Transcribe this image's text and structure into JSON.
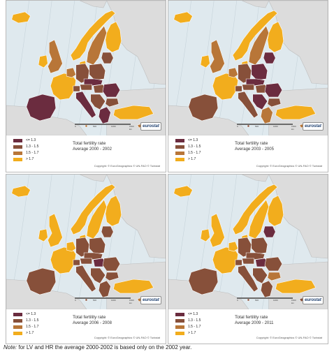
{
  "legend": [
    {
      "label": "<= 1.3",
      "color": "#6b2c3f"
    },
    {
      "label": "1.3 - 1.5",
      "color": "#87503a"
    },
    {
      "label": "1.5 - 1.7",
      "color": "#b87638"
    },
    {
      "label": "> 1.7",
      "color": "#f2ad1d"
    }
  ],
  "map_title": "Total fertility rate",
  "copyright": "Copyright: © EuroGeographics © UN-FAO © Turkstat",
  "logo_text": "eurostat",
  "scale": {
    "ticks": [
      "0",
      "500",
      "1000",
      "1500 km"
    ]
  },
  "panels": [
    {
      "period": "Average 2000 - 2002",
      "regions": {
        "iceland": "1.7+",
        "norway": "1.7+",
        "sweden": "1.5-1.7",
        "finland": "1.7+",
        "denmark": "1.7+",
        "ireland": "1.7+",
        "uk": "1.5-1.7",
        "france": "1.7+",
        "benelux": "1.5-1.7",
        "germany": "1.3-1.5",
        "poland": "1.3-1.5",
        "baltics": "1.3-1.5",
        "czsk": "<=1.3",
        "hu": "1.3-1.5",
        "at": "1.3-1.5",
        "ch": "1.3-1.5",
        "iberia": "<=1.3",
        "italy": "<=1.3",
        "balkans": "1.3-1.5",
        "romania": "<=1.3",
        "bulgaria": "1.3-1.5",
        "greece": "<=1.3",
        "turkey": "1.7+",
        "cyprus": "1.5-1.7",
        "malta": "1.5-1.7"
      }
    },
    {
      "period": "Average 2003 - 2005",
      "regions": {
        "iceland": "1.7+",
        "norway": "1.7+",
        "sweden": "1.5-1.7",
        "finland": "1.7+",
        "denmark": "1.7+",
        "ireland": "1.7+",
        "uk": "1.5-1.7",
        "france": "1.7+",
        "benelux": "1.5-1.7",
        "germany": "1.3-1.5",
        "poland": "<=1.3",
        "baltics": "<=1.3",
        "czsk": "<=1.3",
        "hu": "1.3-1.5",
        "at": "1.3-1.5",
        "ch": "1.3-1.5",
        "iberia": "1.3-1.5",
        "italy": "1.3-1.5",
        "balkans": "<=1.3",
        "romania": "<=1.3",
        "bulgaria": "1.3-1.5",
        "greece": "1.5-1.7",
        "turkey": "1.7+",
        "cyprus": "1.5-1.7",
        "malta": "1.3-1.5"
      }
    },
    {
      "period": "Average 2006 - 2008",
      "regions": {
        "iceland": "1.7+",
        "norway": "1.7+",
        "sweden": "1.7+",
        "finland": "1.7+",
        "denmark": "1.7+",
        "ireland": "1.7+",
        "uk": "1.7+",
        "france": "1.7+",
        "benelux": "1.7+",
        "germany": "1.3-1.5",
        "poland": "1.3-1.5",
        "baltics": "1.3-1.5",
        "czsk": "1.3-1.5",
        "hu": "<=1.3",
        "at": "1.3-1.5",
        "ch": "1.3-1.5",
        "iberia": "1.3-1.5",
        "italy": "1.3-1.5",
        "balkans": "1.3-1.5",
        "romania": "1.3-1.5",
        "bulgaria": "1.3-1.5",
        "greece": "1.3-1.5",
        "turkey": "1.7+",
        "cyprus": "1.5-1.7",
        "malta": "1.3-1.5"
      }
    },
    {
      "period": "Average 2009 - 2011",
      "regions": {
        "iceland": "1.7+",
        "norway": "1.7+",
        "sweden": "1.7+",
        "finland": "1.7+",
        "denmark": "1.7+",
        "ireland": "1.7+",
        "uk": "1.7+",
        "france": "1.7+",
        "benelux": "1.7+",
        "germany": "1.3-1.5",
        "poland": "1.3-1.5",
        "baltics": "<=1.3",
        "czsk": "1.3-1.5",
        "hu": "<=1.3",
        "at": "1.3-1.5",
        "ch": "1.3-1.5",
        "iberia": "1.3-1.5",
        "italy": "1.3-1.5",
        "balkans": "1.3-1.5",
        "romania": "1.3-1.5",
        "bulgaria": "1.5-1.7",
        "greece": "1.3-1.5",
        "turkey": "1.7+",
        "cyprus": "1.3-1.5",
        "malta": "1.3-1.5"
      }
    }
  ],
  "note": {
    "lead": "Note:",
    "text": " for LV and HR the average 2000-2002 is based only on the 2002 year."
  }
}
